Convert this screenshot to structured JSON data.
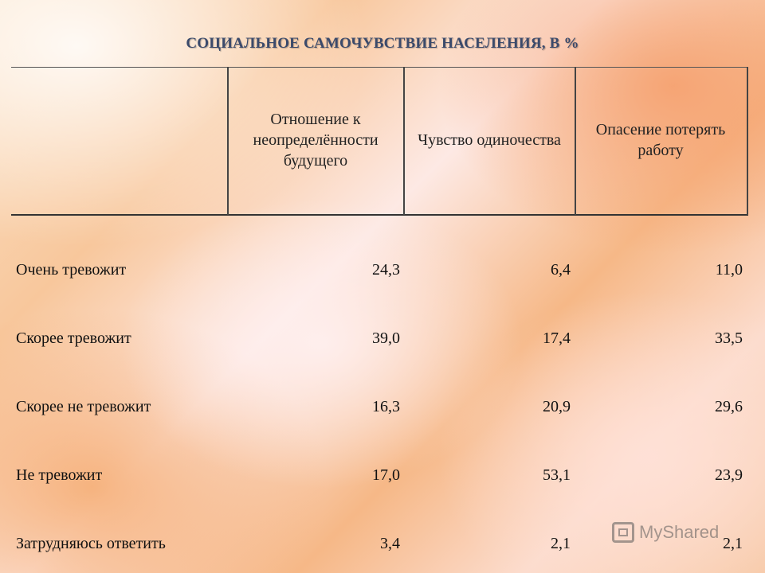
{
  "title": "СОЦИАЛЬНОЕ САМОЧУВСТВИЕ НАСЕЛЕНИЯ, В %",
  "table": {
    "columns": [
      "Отношение к неопределённости будущего",
      "Чувство одиночества",
      "Опасение потерять работу"
    ],
    "rows": [
      {
        "label": "Очень тревожит",
        "values": [
          "24,3",
          "6,4",
          "11,0"
        ]
      },
      {
        "label": "Скорее тревожит",
        "values": [
          "39,0",
          "17,4",
          "33,5"
        ]
      },
      {
        "label": "Скорее не тревожит",
        "values": [
          "16,3",
          "20,9",
          "29,6"
        ]
      },
      {
        "label": "Не тревожит",
        "values": [
          "17,0",
          "53,1",
          "23,9"
        ]
      },
      {
        "label": "Затрудняюсь ответить",
        "values": [
          "3,4",
          "2,1",
          "2,1"
        ]
      }
    ]
  },
  "watermark": {
    "text": "MyShared",
    "icon": "myshared-logo-icon"
  }
}
